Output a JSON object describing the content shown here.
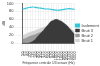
{
  "chart_data": {
    "type": "line",
    "x_label": "Fréquence centrale 1/3 octave (Hz)",
    "y_label": "dB",
    "categories": [
      "50",
      "63",
      "80",
      "100",
      "125",
      "160",
      "200",
      "250",
      "315",
      "400",
      "500",
      "630",
      "800",
      "1000",
      "1250",
      "1600",
      "2000",
      "2500",
      "3150",
      "4000",
      "5000"
    ],
    "series": [
      {
        "name": "Isolement",
        "color": "#33c6d8",
        "type": "line",
        "values": [
          85,
          87,
          89,
          90,
          91,
          90,
          89,
          88,
          87,
          86,
          86,
          85,
          84,
          83,
          83,
          84,
          85,
          86,
          87,
          86,
          85
        ]
      },
      {
        "name": "Bruit 1",
        "color": "#d4d4d4",
        "type": "area",
        "values": [
          20,
          22,
          25,
          28,
          30,
          32,
          35,
          38,
          40,
          42,
          44,
          46,
          48,
          50,
          50,
          48,
          45,
          42,
          38,
          35,
          30
        ]
      },
      {
        "name": "Bruit 2",
        "color": "#9a9a9a",
        "type": "area",
        "values": [
          10,
          12,
          15,
          18,
          20,
          22,
          25,
          28,
          30,
          32,
          34,
          36,
          38,
          40,
          40,
          38,
          35,
          32,
          28,
          25,
          20
        ]
      },
      {
        "name": "Bruit 3",
        "color": "#3a3a3a",
        "type": "area",
        "values": [
          0,
          0,
          0,
          2,
          5,
          10,
          18,
          25,
          32,
          40,
          48,
          55,
          58,
          60,
          58,
          55,
          50,
          45,
          38,
          30,
          22
        ]
      }
    ],
    "ylim": [
      0,
      100
    ],
    "yticks": [
      0,
      20,
      40,
      60,
      80,
      100
    ],
    "grid": true,
    "legend": "right"
  }
}
